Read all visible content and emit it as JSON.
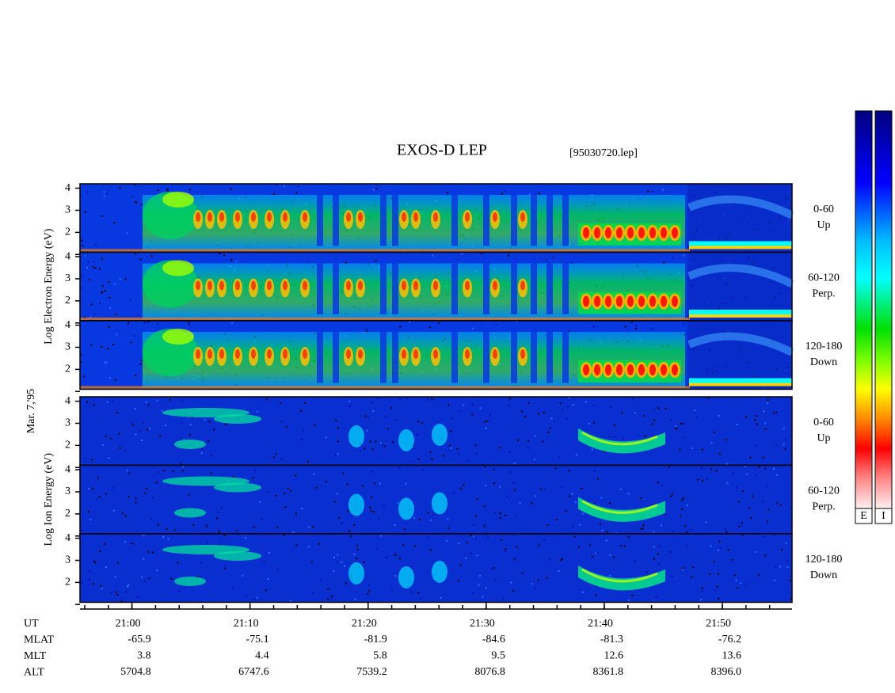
{
  "header": {
    "title": "EXOS-D LEP",
    "file": "[95030720.lep]"
  },
  "date": "Mar. 7,'95",
  "groups": [
    {
      "axis_label": "Log   Electron   Energy (eV)",
      "kind": "electron",
      "panels": [
        {
          "label": [
            "0-60",
            "Up"
          ]
        },
        {
          "label": [
            "60-120",
            "Perp."
          ]
        },
        {
          "label": [
            "120-180",
            "Down"
          ]
        }
      ]
    },
    {
      "axis_label": "Log   Ion   Energy (eV)",
      "kind": "ion",
      "panels": [
        {
          "label": [
            "0-60",
            "Up"
          ]
        },
        {
          "label": [
            "60-120",
            "Perp."
          ]
        },
        {
          "label": [
            "120-180",
            "Down"
          ]
        }
      ]
    }
  ],
  "energy_axis": {
    "ylim": [
      1.1,
      4.2
    ],
    "yticks": [
      2,
      3,
      4
    ],
    "unlabeled_yticks": [
      1
    ]
  },
  "time_axis": {
    "xlim": [
      -4.4,
      55.9
    ],
    "xticks": [
      {
        "value": 0,
        "label": "21:00"
      },
      {
        "value": 10,
        "label": "21:10"
      },
      {
        "value": 20,
        "label": "21:20"
      },
      {
        "value": 30,
        "label": "21:30"
      },
      {
        "value": 40,
        "label": "21:40"
      },
      {
        "value": 50,
        "label": "21:50"
      }
    ],
    "minor_step": 2
  },
  "ephemeris": {
    "labels": [
      "UT",
      "MLAT",
      "MLT",
      "ALT"
    ],
    "rows": [
      [
        "-65.9",
        "-75.1",
        "-81.9",
        "-84.6",
        "-81.3",
        "-76.2"
      ],
      [
        "3.8",
        "4.4",
        "5.8",
        "9.5",
        "12.6",
        "13.6"
      ],
      [
        "5704.8",
        "6747.6",
        "7539.2",
        "8076.8",
        "8361.8",
        "8396.0"
      ]
    ]
  },
  "colorbars": [
    "E",
    "I"
  ]
}
